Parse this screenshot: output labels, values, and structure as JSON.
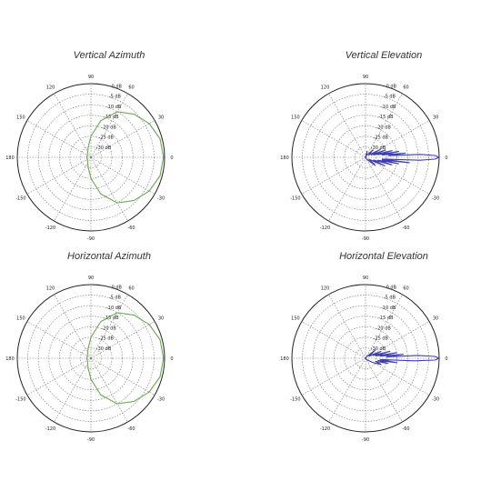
{
  "chart_data": [
    {
      "type": "polar",
      "title": "Vertical Azimuth",
      "angle_ticks": [
        "90",
        "60",
        "30",
        "0",
        "-30",
        "-60",
        "-90",
        "-120",
        "-150",
        "180",
        "150",
        "120"
      ],
      "ring_labels": [
        "0 dB",
        "-5 dB",
        "-10 dB",
        "-15 dB",
        "-20 dB",
        "-25 dB",
        "-30 dB"
      ],
      "r_range_db": [
        -35,
        0
      ],
      "grid": true,
      "series": [
        {
          "color": "#6aa84f",
          "points": [
            {
              "angle": 0,
              "db": -0.5
            },
            {
              "angle": 15,
              "db": -1
            },
            {
              "angle": 30,
              "db": -3
            },
            {
              "angle": 45,
              "db": -6
            },
            {
              "angle": 60,
              "db": -10
            },
            {
              "angle": 75,
              "db": -17
            },
            {
              "angle": 90,
              "db": -25
            },
            {
              "angle": 105,
              "db": -30
            },
            {
              "angle": 120,
              "db": -32
            },
            {
              "angle": 150,
              "db": -33
            },
            {
              "angle": 180,
              "db": -33
            },
            {
              "angle": 210,
              "db": -33
            },
            {
              "angle": 240,
              "db": -32
            },
            {
              "angle": 255,
              "db": -30
            },
            {
              "angle": 270,
              "db": -25
            },
            {
              "angle": 285,
              "db": -17
            },
            {
              "angle": 300,
              "db": -10
            },
            {
              "angle": 315,
              "db": -6
            },
            {
              "angle": 330,
              "db": -3
            },
            {
              "angle": 345,
              "db": -1
            },
            {
              "angle": 360,
              "db": -0.5
            }
          ]
        }
      ]
    },
    {
      "type": "polar",
      "title": "Vertical Elevation",
      "angle_ticks": [
        "90",
        "60",
        "30",
        "0",
        "-30",
        "-60",
        "-90",
        "-120",
        "-150",
        "180",
        "150",
        "120"
      ],
      "ring_labels": [
        "0 dB",
        "-5 dB",
        "-10 dB",
        "-15 dB",
        "-20 dB",
        "-25 dB",
        "-30 dB"
      ],
      "r_range_db": [
        -35,
        0
      ],
      "grid": true,
      "series": [
        {
          "color": "#3d3db8",
          "points": [
            {
              "angle": -6,
              "db": -27
            },
            {
              "angle": -3,
              "db": -9
            },
            {
              "angle": -1.5,
              "db": -2
            },
            {
              "angle": 0,
              "db": 0
            },
            {
              "angle": 1.5,
              "db": -2
            },
            {
              "angle": 3,
              "db": -9
            },
            {
              "angle": 4,
              "db": -24
            },
            {
              "angle": 6,
              "db": -16
            },
            {
              "angle": 8,
              "db": -27
            },
            {
              "angle": 10,
              "db": -19
            },
            {
              "angle": 12,
              "db": -29
            },
            {
              "angle": 14,
              "db": -22
            },
            {
              "angle": 17,
              "db": -31
            },
            {
              "angle": 20,
              "db": -25
            },
            {
              "angle": 24,
              "db": -32
            },
            {
              "angle": 28,
              "db": -27
            },
            {
              "angle": 35,
              "db": -33
            },
            {
              "angle": 45,
              "db": -30
            },
            {
              "angle": 60,
              "db": -34
            },
            {
              "angle": 75,
              "db": -32
            },
            {
              "angle": 90,
              "db": -35
            },
            {
              "angle": 180,
              "db": -35
            },
            {
              "angle": 270,
              "db": -35
            },
            {
              "angle": 300,
              "db": -34
            },
            {
              "angle": 320,
              "db": -29
            },
            {
              "angle": 330,
              "db": -33
            },
            {
              "angle": 336,
              "db": -25
            },
            {
              "angle": 341,
              "db": -31
            },
            {
              "angle": 344,
              "db": -22
            },
            {
              "angle": 347,
              "db": -29
            },
            {
              "angle": 349,
              "db": -19
            },
            {
              "angle": 351,
              "db": -27
            },
            {
              "angle": 353,
              "db": -14
            },
            {
              "angle": 354,
              "db": -27
            }
          ]
        }
      ]
    },
    {
      "type": "polar",
      "title": "Horizontal Azimuth",
      "angle_ticks": [
        "90",
        "60",
        "30",
        "0",
        "-30",
        "-60",
        "-90",
        "-120",
        "-150",
        "180",
        "150",
        "120"
      ],
      "ring_labels": [
        "0 dB",
        "-5 dB",
        "-10 dB",
        "-15 dB",
        "-20 dB",
        "-25 dB",
        "-30 dB"
      ],
      "r_range_db": [
        -35,
        0
      ],
      "grid": true,
      "series": [
        {
          "color": "#6aa84f",
          "points": [
            {
              "angle": 0,
              "db": -0.5
            },
            {
              "angle": 15,
              "db": -1
            },
            {
              "angle": 30,
              "db": -3
            },
            {
              "angle": 45,
              "db": -6
            },
            {
              "angle": 60,
              "db": -10
            },
            {
              "angle": 75,
              "db": -17
            },
            {
              "angle": 90,
              "db": -25
            },
            {
              "angle": 105,
              "db": -30
            },
            {
              "angle": 120,
              "db": -32
            },
            {
              "angle": 150,
              "db": -33
            },
            {
              "angle": 180,
              "db": -33
            },
            {
              "angle": 210,
              "db": -33
            },
            {
              "angle": 240,
              "db": -32
            },
            {
              "angle": 255,
              "db": -30
            },
            {
              "angle": 270,
              "db": -25
            },
            {
              "angle": 285,
              "db": -17
            },
            {
              "angle": 300,
              "db": -10
            },
            {
              "angle": 315,
              "db": -6
            },
            {
              "angle": 330,
              "db": -3
            },
            {
              "angle": 345,
              "db": -1
            },
            {
              "angle": 360,
              "db": -0.5
            }
          ]
        }
      ]
    },
    {
      "type": "polar",
      "title": "Horizontal Elevation",
      "angle_ticks": [
        "90",
        "60",
        "30",
        "0",
        "-30",
        "-60",
        "-90",
        "-120",
        "-150",
        "180",
        "150",
        "120"
      ],
      "ring_labels": [
        "0 dB",
        "-5 dB",
        "-10 dB",
        "-15 dB",
        "-20 dB",
        "-25 dB",
        "-30 dB"
      ],
      "r_range_db": [
        -35,
        0
      ],
      "grid": true,
      "series": [
        {
          "color": "#3d3db8",
          "points": [
            {
              "angle": -5,
              "db": -28
            },
            {
              "angle": -3,
              "db": -12
            },
            {
              "angle": -1.5,
              "db": -2
            },
            {
              "angle": 0,
              "db": 0
            },
            {
              "angle": 1.5,
              "db": -2
            },
            {
              "angle": 3,
              "db": -10
            },
            {
              "angle": 4,
              "db": -25
            },
            {
              "angle": 6,
              "db": -17
            },
            {
              "angle": 8,
              "db": -28
            },
            {
              "angle": 10,
              "db": -20
            },
            {
              "angle": 13,
              "db": -30
            },
            {
              "angle": 16,
              "db": -23
            },
            {
              "angle": 20,
              "db": -31
            },
            {
              "angle": 24,
              "db": -27
            },
            {
              "angle": 30,
              "db": -33
            },
            {
              "angle": 40,
              "db": -29
            },
            {
              "angle": 55,
              "db": -34
            },
            {
              "angle": 90,
              "db": -35
            },
            {
              "angle": 180,
              "db": -35
            },
            {
              "angle": 270,
              "db": -35
            },
            {
              "angle": 310,
              "db": -34
            },
            {
              "angle": 330,
              "db": -31
            },
            {
              "angle": 338,
              "db": -27
            },
            {
              "angle": 343,
              "db": -30
            },
            {
              "angle": 347,
              "db": -24
            },
            {
              "angle": 350,
              "db": -29
            },
            {
              "angle": 352,
              "db": -20
            },
            {
              "angle": 355,
              "db": -28
            }
          ]
        }
      ]
    }
  ]
}
